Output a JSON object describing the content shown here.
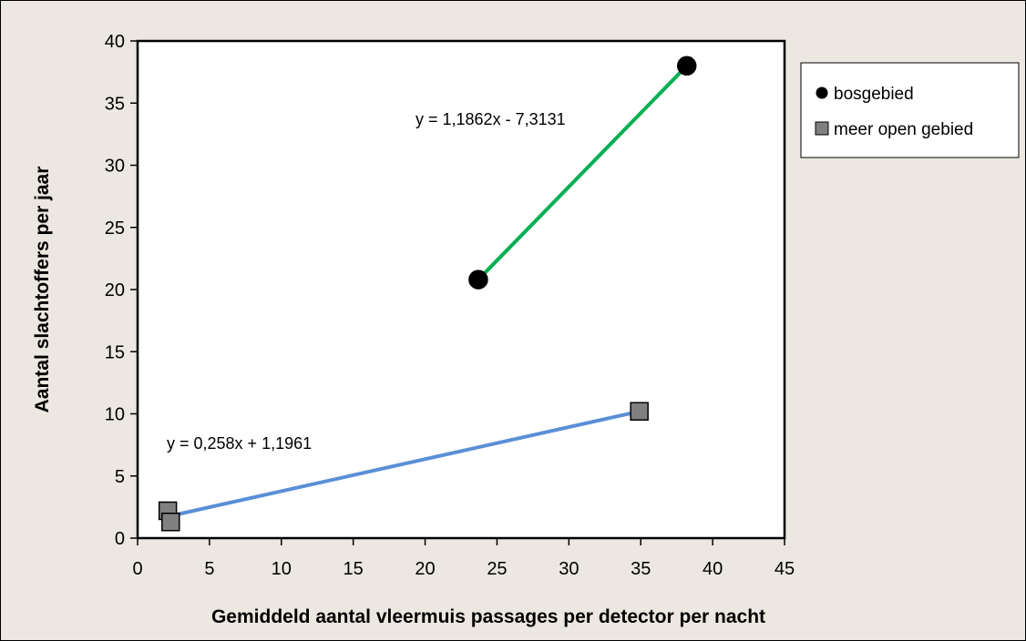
{
  "chart_data": {
    "type": "scatter",
    "title": "",
    "xlabel": "Gemiddeld aantal vleermuis passages per detector per nacht",
    "ylabel": "Aantal slachtoffers per jaar",
    "xlim": [
      0,
      45
    ],
    "ylim": [
      0,
      40
    ],
    "x_ticks": [
      0,
      5,
      10,
      15,
      20,
      25,
      30,
      35,
      40,
      45
    ],
    "y_ticks": [
      0,
      5,
      10,
      15,
      20,
      25,
      30,
      35,
      40
    ],
    "grid": false,
    "legend_position": "right",
    "series": [
      {
        "name": "bosgebied",
        "marker": "circle",
        "marker_color": "#000000",
        "line_color": "#00b050",
        "points": [
          [
            23.7,
            20.8
          ],
          [
            38.2,
            38.0
          ]
        ],
        "trendline": {
          "slope": 1.1862,
          "intercept": -7.3131,
          "x_range": [
            23.7,
            38.2
          ]
        },
        "equation": "y = 1,1862x - 7,3131"
      },
      {
        "name": "meer open gebied",
        "marker": "square",
        "marker_color": "#808080",
        "line_color": "#5b8fd6",
        "points": [
          [
            2.1,
            2.2
          ],
          [
            2.3,
            1.3
          ],
          [
            34.9,
            10.2
          ]
        ],
        "trendline": {
          "slope": 0.258,
          "intercept": 1.1961,
          "x_range": [
            2.0,
            34.9
          ]
        },
        "equation": "y = 0,258x + 1,1961"
      }
    ]
  }
}
